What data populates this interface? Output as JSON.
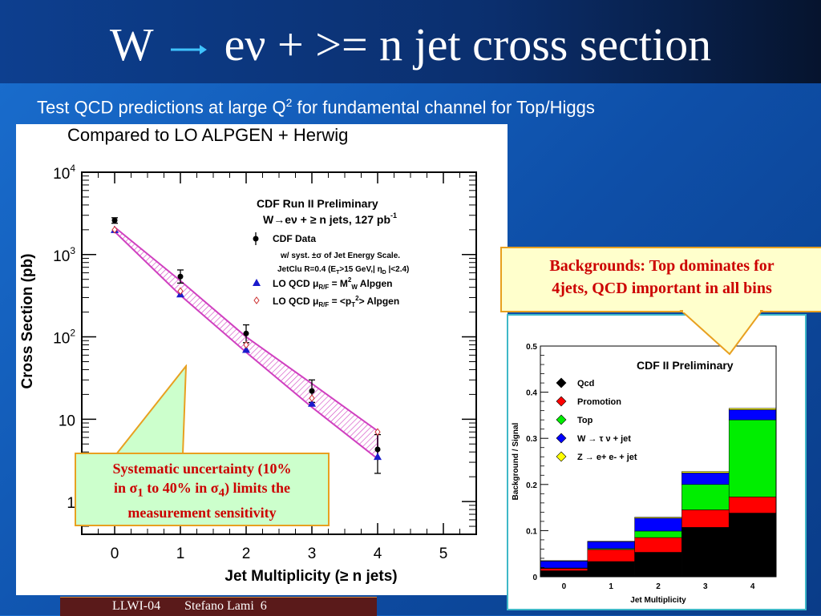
{
  "slide": {
    "title_pre": "W",
    "title_post": "eν + >= n jet cross section",
    "subtitle_main": "Test QCD predictions at large Q",
    "subtitle_sup": "2",
    "subtitle_rest": " for fundamental channel for Top/Higgs",
    "compared": "Compared to  LO  ALPGEN + Herwig",
    "callout_backgrounds_line1": "Backgrounds: Top dominates for",
    "callout_backgrounds_line2": "4jets, QCD important in all bins",
    "callout_sys_line1": "Systematic uncertainty (10%",
    "callout_sys_line2_a": "in σ",
    "callout_sys_line2_sub1": "1",
    "callout_sys_line2_b": " to 40% in σ",
    "callout_sys_line2_sub2": "4",
    "callout_sys_line2_c": ") limits the",
    "callout_sys_line3": "measurement sensitivity",
    "footer_conf": "LLWI-04",
    "footer_author": "Stefano Lami",
    "footer_page": "6",
    "colors": {
      "accent": "#cc0000",
      "title_text": "#ffffff",
      "arrow": "#3fc3ff"
    }
  },
  "chart_data": [
    {
      "type": "scatter",
      "xlabel": "Jet Multiplicity (≥ n jets)",
      "ylabel": "Cross Section (pb)",
      "xlim": [
        -0.5,
        5.5
      ],
      "ylim": [
        0.4,
        10000
      ],
      "log_y": true,
      "x_ticks": [
        "0",
        "1",
        "2",
        "3",
        "4",
        "5"
      ],
      "y_ticks": [
        {
          "base": "10",
          "exp": "4",
          "value": 10000
        },
        {
          "base": "10",
          "exp": "3",
          "value": 1000
        },
        {
          "base": "10",
          "exp": "2",
          "value": 100
        },
        {
          "base": "10",
          "exp": "",
          "value": 10
        },
        {
          "base": "1",
          "exp": "",
          "value": 1
        }
      ],
      "legend_title_1": "CDF Run II Preliminary",
      "legend_title_2_a": "W→eν + ≥ n jets, 127 pb",
      "legend_title_2_sup": "-1",
      "legend_data": "CDF Data",
      "legend_syst_1": "w/ syst.  ±σ of Jet Energy Scale.",
      "legend_syst_2": "JetClu R=0.4 (E",
      "legend_syst_2_sub": "T",
      "legend_syst_2_b": ">15 GeV,| η",
      "legend_syst_2_sub2": "D",
      "legend_syst_2_c": " |<2.4)",
      "legend_qcd1_a": "LO QCD   μ",
      "legend_qcd1_sub": "R/F",
      "legend_qcd1_b": " = M",
      "legend_qcd1_sup": "2",
      "legend_qcd1_sub2": "W",
      "legend_qcd1_c": "  Alpgen",
      "legend_qcd2_a": "LO QCD   μ",
      "legend_qcd2_sub": "R/F",
      "legend_qcd2_b": " = <p",
      "legend_qcd2_sub2": "T",
      "legend_qcd2_sup": "2",
      "legend_qcd2_c": ">  Alpgen",
      "series": [
        {
          "name": "CDF Data",
          "x": [
            0,
            1,
            2,
            3,
            4
          ],
          "y": [
            2600,
            540,
            110,
            22,
            4.3
          ],
          "err_hi": [
            2800,
            650,
            140,
            30,
            6.5
          ],
          "err_lo": [
            2400,
            450,
            85,
            16,
            2.2
          ]
        },
        {
          "name": "LO QCD μ R/F = M2 W Alpgen",
          "x": [
            0,
            1,
            2,
            3,
            4
          ],
          "y": [
            2000,
            330,
            70,
            15.5,
            3.5
          ]
        },
        {
          "name": "LO QCD μ R/F = <pT2> Alpgen",
          "x": [
            0,
            1,
            2,
            3,
            4
          ],
          "y": [
            2000,
            360,
            80,
            18,
            7
          ]
        }
      ],
      "band_upper": [
        2150,
        480,
        100,
        27,
        7.2
      ],
      "band_lower": [
        1900,
        320,
        65,
        14,
        3.3
      ]
    },
    {
      "type": "bar",
      "title": "CDF II Preliminary",
      "xlabel": "Jet Multiplicity",
      "ylabel": "Background / Signal",
      "categories": [
        "0",
        "1",
        "2",
        "3",
        "4"
      ],
      "ylim": [
        0,
        0.5
      ],
      "y_ticks": [
        "0",
        "0.1",
        "0.2",
        "0.3",
        "0.4",
        "0.5"
      ],
      "stacked": true,
      "series": [
        {
          "name": "Qcd",
          "color": "#000000",
          "values": [
            0.013,
            0.033,
            0.053,
            0.107,
            0.138
          ]
        },
        {
          "name": "Promotion",
          "color": "#ff0000",
          "values": [
            0.005,
            0.026,
            0.032,
            0.038,
            0.035
          ]
        },
        {
          "name": "Top",
          "color": "#00ee00",
          "values": [
            0.001,
            0.002,
            0.014,
            0.055,
            0.167
          ]
        },
        {
          "name": "W → τ ν + jet",
          "color": "#0000ff",
          "values": [
            0.015,
            0.015,
            0.028,
            0.025,
            0.022
          ]
        },
        {
          "name": "Z → e+ e- + jet",
          "color": "#ffff00",
          "values": [
            0.001,
            0.001,
            0.002,
            0.003,
            0.003
          ]
        }
      ]
    }
  ]
}
